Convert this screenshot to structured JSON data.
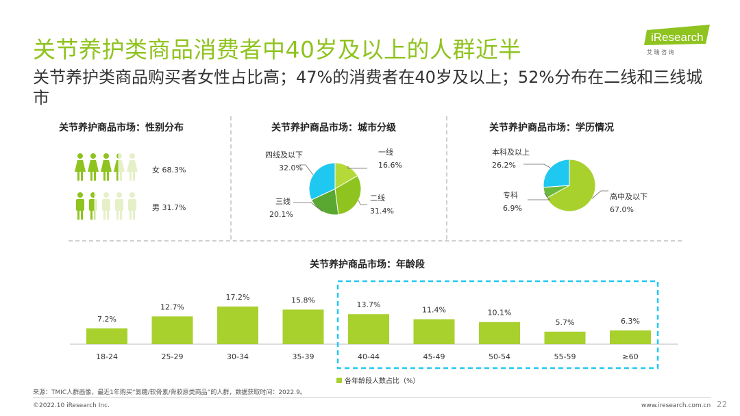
{
  "header": {
    "title": "关节养护类商品消费者中40岁及以上的人群近半",
    "subtitle": "关节养护类商品购买者女性占比高；47%的消费者在40岁及以上；52%分布在二线和三线城市",
    "logo_text": "iResearch",
    "logo_sub": "艾 瑞 咨 询"
  },
  "colors": {
    "accent": "#8fc31f",
    "green_dark": "#5aa832",
    "green_light": "#b6d93a",
    "cyan": "#1fc8f0",
    "pale": "#e6f0c8"
  },
  "chart_data": [
    {
      "type": "pictogram",
      "title": "关节养护商品市场：性别分布",
      "categories": [
        "女",
        "男"
      ],
      "values": [
        68.3,
        31.7
      ],
      "labels": [
        "女 68.3%",
        "男 31.7%"
      ],
      "unit": "%"
    },
    {
      "type": "pie",
      "title": "关节养护商品市场：城市分级",
      "categories": [
        "一线",
        "二线",
        "三线",
        "四线及以下"
      ],
      "values": [
        16.6,
        31.4,
        20.1,
        32.0
      ],
      "value_labels": [
        "16.6%",
        "31.4%",
        "20.1%",
        "32.0%"
      ],
      "colors": [
        "#b6d93a",
        "#8fc31f",
        "#5aa832",
        "#1fc8f0"
      ]
    },
    {
      "type": "pie",
      "title": "关节养护商品市场：学历情况",
      "categories": [
        "高中及以下",
        "专科",
        "本科及以上"
      ],
      "values": [
        67.0,
        6.9,
        26.2
      ],
      "value_labels": [
        "67.0%",
        "6.9%",
        "26.2%"
      ],
      "colors": [
        "#a8d12e",
        "#6bb83a",
        "#1fc8f0"
      ]
    },
    {
      "type": "bar",
      "title": "关节养护商品市场：年龄段",
      "categories": [
        "18-24",
        "25-29",
        "30-34",
        "35-39",
        "40-44",
        "45-49",
        "50-54",
        "55-59",
        "≥60"
      ],
      "values": [
        7.2,
        12.7,
        17.2,
        15.8,
        13.7,
        11.4,
        10.1,
        5.7,
        6.3
      ],
      "value_labels": [
        "7.2%",
        "12.7%",
        "17.2%",
        "15.8%",
        "13.7%",
        "11.4%",
        "10.1%",
        "5.7%",
        "6.3%"
      ],
      "legend": "各年龄段人数占比（%）",
      "legend_position": "bottom",
      "highlight": [
        "40-44",
        "45-49",
        "50-54",
        "55-59",
        "≥60"
      ],
      "color": "#a8d12e"
    }
  ],
  "footer": {
    "source": "来源：TMIC人群画像，最近1年购买“氨糖/软骨素/骨胶原类商品”的人群，数据获取时间：2022.9。",
    "copyright": "©2022.10 iResearch Inc.",
    "website": "www.iresearch.com.cn",
    "page_number": "22"
  }
}
